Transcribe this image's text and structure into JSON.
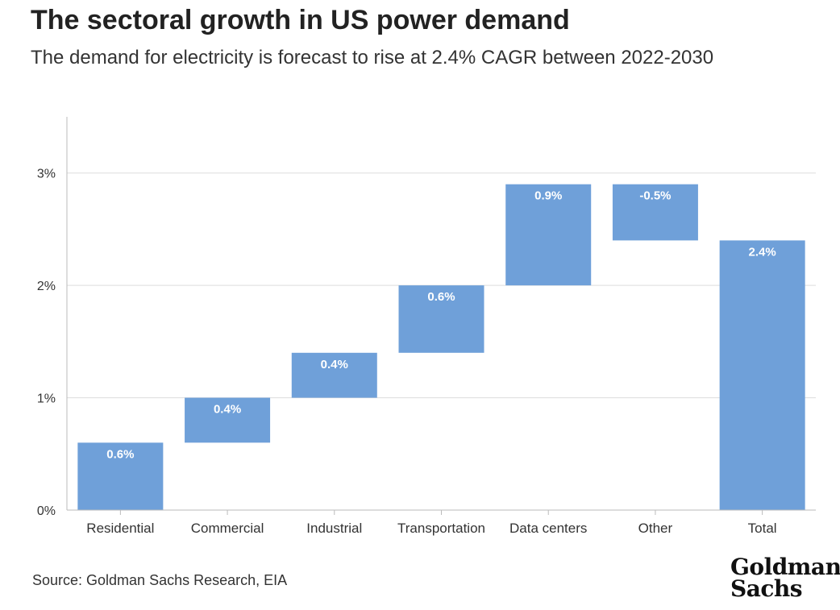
{
  "header": {
    "title": "The sectoral growth in US power demand",
    "subtitle": "The demand for electricity is forecast to rise at 2.4% CAGR between 2022-2030"
  },
  "footer": {
    "source": "Source: Goldman Sachs Research, EIA",
    "logo_line1": "Goldman",
    "logo_line2": "Sachs"
  },
  "colors": {
    "bar": "#6fa0d9",
    "grid": "#dddddd",
    "axis": "#bbbbbb"
  },
  "chart_data": {
    "type": "bar",
    "subtype": "waterfall",
    "categories": [
      "Residential",
      "Commercial",
      "Industrial",
      "Transportation",
      "Data centers",
      "Other",
      "Total"
    ],
    "values": [
      0.6,
      0.4,
      0.4,
      0.6,
      0.9,
      -0.5,
      2.4
    ],
    "data_labels": [
      "0.6%",
      "0.4%",
      "0.4%",
      "0.6%",
      "0.9%",
      "-0.5%",
      "2.4%"
    ],
    "bar_ranges": [
      [
        0,
        0.6
      ],
      [
        0.6,
        1.0
      ],
      [
        1.0,
        1.4
      ],
      [
        1.4,
        2.0
      ],
      [
        2.0,
        2.9
      ],
      [
        2.4,
        2.9
      ],
      [
        0,
        2.4
      ]
    ],
    "ylim": [
      0,
      3.5
    ],
    "yticks": [
      0,
      1,
      2,
      3
    ],
    "ytick_labels": [
      "0%",
      "1%",
      "2%",
      "3%"
    ],
    "grid": true,
    "legend": "none"
  }
}
